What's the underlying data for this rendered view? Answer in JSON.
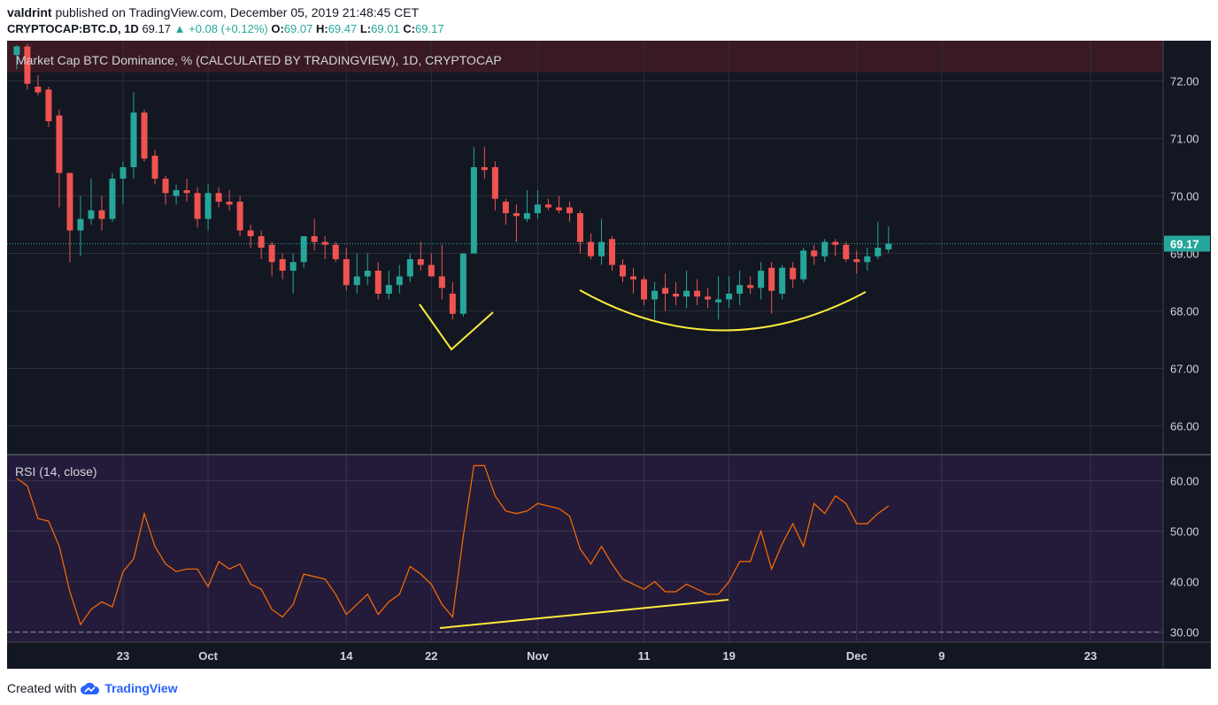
{
  "header": {
    "author": "valdrint",
    "published_text": "published on TradingView.com, December 05, 2019 21:48:45 CET",
    "symbol": "CRYPTOCAP:BTC.D",
    "interval": "1D",
    "last": "69.17",
    "change": "+0.08 (+0.12%)",
    "o_label": "O:",
    "o": "69.07",
    "h_label": "H:",
    "h": "69.47",
    "l_label": "L:",
    "l": "69.01",
    "c_label": "C:",
    "c": "69.17"
  },
  "footer": {
    "created_with": "Created with",
    "brand": "TradingView"
  },
  "colors": {
    "background": "#131722",
    "rsi_background": "#241b3a",
    "grid": "#2a2e39",
    "up": "#26a69a",
    "down": "#ef5350",
    "rsi_line": "#ff6d00",
    "annotation": "#ffeb3b",
    "price_line": "#26a69a"
  },
  "chart_data": [
    {
      "type": "candlestick",
      "title": "Market Cap BTC Dominance, % (CALCULATED BY TRADINGVIEW), 1D, CRYPTOCAP",
      "y_ticks": [
        "72.00",
        "71.00",
        "70.00",
        "69.00",
        "68.00",
        "67.00",
        "66.00"
      ],
      "ylim": [
        65.5,
        72.7
      ],
      "last_price_label": "69.17",
      "last_price": 69.17,
      "x_labels": [
        "23",
        "Oct",
        "14",
        "22",
        "Nov",
        "11",
        "19",
        "Dec",
        "9",
        "23"
      ],
      "x_label_dates": [
        "2019-09-23",
        "2019-10-01",
        "2019-10-14",
        "2019-10-22",
        "2019-11-01",
        "2019-11-11",
        "2019-11-19",
        "2019-12-01",
        "2019-12-09",
        "2019-12-23"
      ],
      "x_range": [
        "2019-09-13",
        "2019-12-31"
      ],
      "candles": [
        {
          "d": "2019-09-13",
          "o": 72.45,
          "h": 72.62,
          "l": 72.2,
          "c": 72.6
        },
        {
          "d": "2019-09-14",
          "o": 72.6,
          "h": 72.65,
          "l": 71.85,
          "c": 71.95
        },
        {
          "d": "2019-09-15",
          "o": 71.9,
          "h": 72.1,
          "l": 71.75,
          "c": 71.8
        },
        {
          "d": "2019-09-16",
          "o": 71.85,
          "h": 71.9,
          "l": 71.2,
          "c": 71.3
        },
        {
          "d": "2019-09-17",
          "o": 71.4,
          "h": 71.5,
          "l": 69.8,
          "c": 70.4
        },
        {
          "d": "2019-09-18",
          "o": 70.4,
          "h": 70.4,
          "l": 68.85,
          "c": 69.4
        },
        {
          "d": "2019-09-19",
          "o": 69.4,
          "h": 70.0,
          "l": 68.95,
          "c": 69.6
        },
        {
          "d": "2019-09-20",
          "o": 69.6,
          "h": 70.3,
          "l": 69.5,
          "c": 69.75
        },
        {
          "d": "2019-09-21",
          "o": 69.75,
          "h": 70.0,
          "l": 69.4,
          "c": 69.6
        },
        {
          "d": "2019-09-22",
          "o": 69.6,
          "h": 70.4,
          "l": 69.55,
          "c": 70.3
        },
        {
          "d": "2019-09-23",
          "o": 70.3,
          "h": 70.6,
          "l": 69.85,
          "c": 70.5
        },
        {
          "d": "2019-09-24",
          "o": 70.5,
          "h": 71.8,
          "l": 70.3,
          "c": 71.45
        },
        {
          "d": "2019-09-25",
          "o": 71.45,
          "h": 71.5,
          "l": 70.6,
          "c": 70.65
        },
        {
          "d": "2019-09-26",
          "o": 70.7,
          "h": 70.8,
          "l": 70.2,
          "c": 70.3
        },
        {
          "d": "2019-09-27",
          "o": 70.3,
          "h": 70.35,
          "l": 69.85,
          "c": 70.05
        },
        {
          "d": "2019-09-28",
          "o": 70.0,
          "h": 70.2,
          "l": 69.85,
          "c": 70.1
        },
        {
          "d": "2019-09-29",
          "o": 70.1,
          "h": 70.3,
          "l": 69.9,
          "c": 70.05
        },
        {
          "d": "2019-09-30",
          "o": 70.05,
          "h": 70.15,
          "l": 69.45,
          "c": 69.6
        },
        {
          "d": "2019-10-01",
          "o": 69.6,
          "h": 70.2,
          "l": 69.4,
          "c": 70.05
        },
        {
          "d": "2019-10-02",
          "o": 70.05,
          "h": 70.15,
          "l": 69.8,
          "c": 69.9
        },
        {
          "d": "2019-10-03",
          "o": 69.9,
          "h": 70.1,
          "l": 69.75,
          "c": 69.85
        },
        {
          "d": "2019-10-04",
          "o": 69.9,
          "h": 70.0,
          "l": 69.3,
          "c": 69.4
        },
        {
          "d": "2019-10-05",
          "o": 69.4,
          "h": 69.5,
          "l": 69.1,
          "c": 69.3
        },
        {
          "d": "2019-10-06",
          "o": 69.3,
          "h": 69.4,
          "l": 68.9,
          "c": 69.1
        },
        {
          "d": "2019-10-07",
          "o": 69.15,
          "h": 69.2,
          "l": 68.6,
          "c": 68.85
        },
        {
          "d": "2019-10-08",
          "o": 68.9,
          "h": 69.0,
          "l": 68.55,
          "c": 68.7
        },
        {
          "d": "2019-10-09",
          "o": 68.7,
          "h": 69.0,
          "l": 68.3,
          "c": 68.85
        },
        {
          "d": "2019-10-10",
          "o": 68.85,
          "h": 69.3,
          "l": 68.75,
          "c": 69.3
        },
        {
          "d": "2019-10-11",
          "o": 69.3,
          "h": 69.6,
          "l": 69.05,
          "c": 69.2
        },
        {
          "d": "2019-10-12",
          "o": 69.2,
          "h": 69.3,
          "l": 68.9,
          "c": 69.15
        },
        {
          "d": "2019-10-13",
          "o": 69.15,
          "h": 69.2,
          "l": 68.85,
          "c": 68.9
        },
        {
          "d": "2019-10-14",
          "o": 68.9,
          "h": 69.1,
          "l": 68.35,
          "c": 68.45
        },
        {
          "d": "2019-10-15",
          "o": 68.45,
          "h": 69.0,
          "l": 68.3,
          "c": 68.6
        },
        {
          "d": "2019-10-16",
          "o": 68.6,
          "h": 69.0,
          "l": 68.45,
          "c": 68.7
        },
        {
          "d": "2019-10-17",
          "o": 68.7,
          "h": 68.85,
          "l": 68.2,
          "c": 68.3
        },
        {
          "d": "2019-10-18",
          "o": 68.3,
          "h": 68.7,
          "l": 68.2,
          "c": 68.45
        },
        {
          "d": "2019-10-19",
          "o": 68.45,
          "h": 68.8,
          "l": 68.3,
          "c": 68.6
        },
        {
          "d": "2019-10-20",
          "o": 68.6,
          "h": 69.0,
          "l": 68.5,
          "c": 68.9
        },
        {
          "d": "2019-10-21",
          "o": 68.9,
          "h": 69.2,
          "l": 68.7,
          "c": 68.8
        },
        {
          "d": "2019-10-22",
          "o": 68.8,
          "h": 69.0,
          "l": 68.6,
          "c": 68.6
        },
        {
          "d": "2019-10-23",
          "o": 68.6,
          "h": 69.15,
          "l": 68.2,
          "c": 68.4
        },
        {
          "d": "2019-10-24",
          "o": 68.3,
          "h": 68.5,
          "l": 67.85,
          "c": 67.95
        },
        {
          "d": "2019-10-25",
          "o": 67.95,
          "h": 69.0,
          "l": 67.9,
          "c": 69.0
        },
        {
          "d": "2019-10-26",
          "o": 69.0,
          "h": 70.85,
          "l": 69.0,
          "c": 70.5
        },
        {
          "d": "2019-10-27",
          "o": 70.5,
          "h": 70.85,
          "l": 70.3,
          "c": 70.45
        },
        {
          "d": "2019-10-28",
          "o": 70.5,
          "h": 70.6,
          "l": 69.75,
          "c": 69.95
        },
        {
          "d": "2019-10-29",
          "o": 69.9,
          "h": 69.95,
          "l": 69.5,
          "c": 69.7
        },
        {
          "d": "2019-10-30",
          "o": 69.7,
          "h": 69.85,
          "l": 69.2,
          "c": 69.65
        },
        {
          "d": "2019-10-31",
          "o": 69.6,
          "h": 70.1,
          "l": 69.55,
          "c": 69.7
        },
        {
          "d": "2019-11-01",
          "o": 69.7,
          "h": 70.1,
          "l": 69.6,
          "c": 69.85
        },
        {
          "d": "2019-11-02",
          "o": 69.85,
          "h": 69.95,
          "l": 69.75,
          "c": 69.8
        },
        {
          "d": "2019-11-03",
          "o": 69.8,
          "h": 70.0,
          "l": 69.7,
          "c": 69.75
        },
        {
          "d": "2019-11-04",
          "o": 69.8,
          "h": 69.9,
          "l": 69.55,
          "c": 69.7
        },
        {
          "d": "2019-11-05",
          "o": 69.7,
          "h": 69.75,
          "l": 69.0,
          "c": 69.2
        },
        {
          "d": "2019-11-06",
          "o": 69.2,
          "h": 69.35,
          "l": 68.9,
          "c": 68.95
        },
        {
          "d": "2019-11-07",
          "o": 68.95,
          "h": 69.6,
          "l": 68.8,
          "c": 69.2
        },
        {
          "d": "2019-11-08",
          "o": 69.25,
          "h": 69.3,
          "l": 68.7,
          "c": 68.8
        },
        {
          "d": "2019-11-09",
          "o": 68.8,
          "h": 68.9,
          "l": 68.5,
          "c": 68.6
        },
        {
          "d": "2019-11-10",
          "o": 68.6,
          "h": 68.75,
          "l": 68.3,
          "c": 68.55
        },
        {
          "d": "2019-11-11",
          "o": 68.55,
          "h": 68.6,
          "l": 68.1,
          "c": 68.2
        },
        {
          "d": "2019-11-12",
          "o": 68.2,
          "h": 68.5,
          "l": 67.85,
          "c": 68.35
        },
        {
          "d": "2019-11-13",
          "o": 68.4,
          "h": 68.65,
          "l": 68.0,
          "c": 68.3
        },
        {
          "d": "2019-11-14",
          "o": 68.3,
          "h": 68.5,
          "l": 68.1,
          "c": 68.25
        },
        {
          "d": "2019-11-15",
          "o": 68.25,
          "h": 68.7,
          "l": 68.05,
          "c": 68.35
        },
        {
          "d": "2019-11-16",
          "o": 68.35,
          "h": 68.55,
          "l": 68.1,
          "c": 68.25
        },
        {
          "d": "2019-11-17",
          "o": 68.25,
          "h": 68.4,
          "l": 68.05,
          "c": 68.2
        },
        {
          "d": "2019-11-18",
          "o": 68.15,
          "h": 68.6,
          "l": 67.85,
          "c": 68.2
        },
        {
          "d": "2019-11-19",
          "o": 68.2,
          "h": 68.6,
          "l": 68.05,
          "c": 68.3
        },
        {
          "d": "2019-11-20",
          "o": 68.3,
          "h": 68.7,
          "l": 68.1,
          "c": 68.45
        },
        {
          "d": "2019-11-21",
          "o": 68.45,
          "h": 68.6,
          "l": 68.3,
          "c": 68.4
        },
        {
          "d": "2019-11-22",
          "o": 68.4,
          "h": 68.85,
          "l": 68.2,
          "c": 68.7
        },
        {
          "d": "2019-11-23",
          "o": 68.75,
          "h": 68.85,
          "l": 67.95,
          "c": 68.35
        },
        {
          "d": "2019-11-24",
          "o": 68.3,
          "h": 68.8,
          "l": 68.2,
          "c": 68.75
        },
        {
          "d": "2019-11-25",
          "o": 68.75,
          "h": 68.85,
          "l": 68.4,
          "c": 68.55
        },
        {
          "d": "2019-11-26",
          "o": 68.55,
          "h": 69.1,
          "l": 68.5,
          "c": 69.05
        },
        {
          "d": "2019-11-27",
          "o": 69.05,
          "h": 69.15,
          "l": 68.8,
          "c": 68.95
        },
        {
          "d": "2019-11-28",
          "o": 68.95,
          "h": 69.25,
          "l": 68.85,
          "c": 69.2
        },
        {
          "d": "2019-11-29",
          "o": 69.2,
          "h": 69.25,
          "l": 68.95,
          "c": 69.15
        },
        {
          "d": "2019-11-30",
          "o": 69.15,
          "h": 69.2,
          "l": 68.85,
          "c": 68.9
        },
        {
          "d": "2019-12-01",
          "o": 68.9,
          "h": 69.05,
          "l": 68.65,
          "c": 68.85
        },
        {
          "d": "2019-12-02",
          "o": 68.85,
          "h": 69.1,
          "l": 68.7,
          "c": 68.95
        },
        {
          "d": "2019-12-03",
          "o": 68.95,
          "h": 69.55,
          "l": 68.9,
          "c": 69.1
        },
        {
          "d": "2019-12-04",
          "o": 69.07,
          "h": 69.47,
          "l": 69.01,
          "c": 69.17
        }
      ]
    },
    {
      "type": "line",
      "title": "RSI (14, close)",
      "y_ticks": [
        "60.00",
        "50.00",
        "40.00",
        "30.00"
      ],
      "ylim": [
        28,
        65
      ],
      "reference_level": 30,
      "series": [
        {
          "values": [
            60.5,
            59,
            52.5,
            52,
            47,
            38,
            31.5,
            34.5,
            36,
            35,
            42,
            44.5,
            53.5,
            47,
            43.5,
            42,
            42.5,
            42.5,
            39,
            44,
            42.5,
            43.5,
            39.5,
            38.5,
            34.5,
            33,
            35.5,
            41.5,
            41,
            40.5,
            37.5,
            33.5,
            35.5,
            37.5,
            33.5,
            36,
            37.5,
            43,
            41.5,
            39.5,
            35.5,
            33,
            49,
            63,
            63,
            57,
            54,
            53.5,
            54,
            55.5,
            55,
            54.5,
            53,
            46.5,
            43.5,
            47,
            43.5,
            40.5,
            39.5,
            38.5,
            40,
            38,
            38,
            39.5,
            38.5,
            37.5,
            37.5,
            40,
            44,
            44,
            50,
            42.5,
            47.5,
            51.5,
            47,
            55.5,
            53.5,
            57,
            55.5,
            51.5,
            51.5,
            53.5,
            55,
            56.5
          ]
        }
      ]
    }
  ]
}
